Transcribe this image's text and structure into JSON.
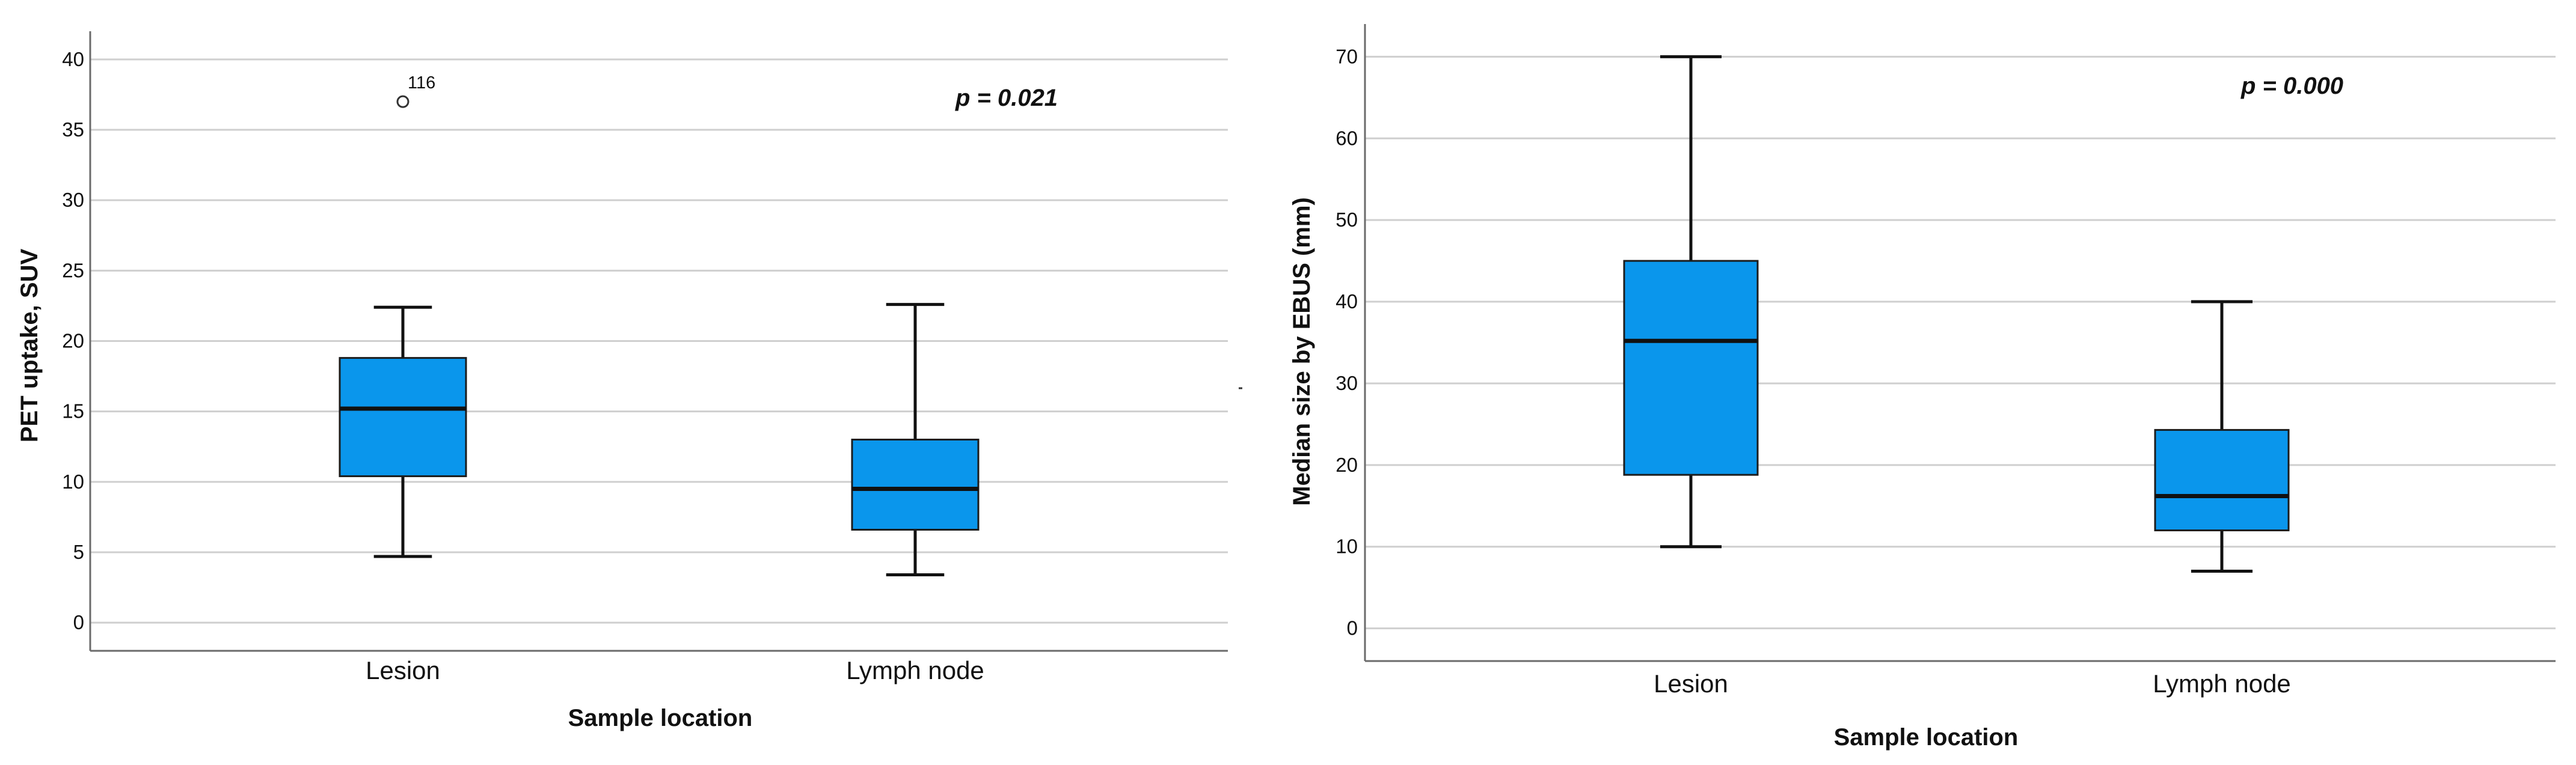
{
  "chart_data": [
    {
      "type": "boxplot",
      "xlabel": "Sample location",
      "ylabel": "PET uptake, SUV",
      "categories": [
        "Lesion",
        "Lymph node"
      ],
      "yticks": [
        0,
        5,
        10,
        15,
        20,
        25,
        30,
        35,
        40
      ],
      "ylim": [
        -2,
        42
      ],
      "grid": true,
      "annotation": "p = 0.021",
      "boxes": [
        {
          "min": 4.7,
          "q1": 10.4,
          "median": 15.2,
          "q3": 18.8,
          "max": 22.4
        },
        {
          "min": 3.4,
          "q1": 6.6,
          "median": 9.5,
          "q3": 13.0,
          "max": 22.6
        }
      ],
      "outliers": [
        {
          "category": "Lesion",
          "value": 37.0,
          "label": "116"
        }
      ],
      "colors": {
        "box": "#0a96ec",
        "line": "#111111",
        "grid": "#cfcfcf"
      }
    },
    {
      "type": "boxplot",
      "xlabel": "Sample location",
      "ylabel": "Median size by EBUS (mm)",
      "categories": [
        "Lesion",
        "Lymph node"
      ],
      "yticks": [
        0,
        10,
        20,
        30,
        40,
        50,
        60,
        70
      ],
      "ylim": [
        -4,
        74
      ],
      "grid": true,
      "annotation": "p = 0.000",
      "boxes": [
        {
          "min": 10,
          "q1": 18.8,
          "median": 35.2,
          "q3": 45.0,
          "max": 70
        },
        {
          "min": 7,
          "q1": 12.0,
          "median": 16.2,
          "q3": 24.3,
          "max": 40
        }
      ],
      "outliers": [],
      "colors": {
        "box": "#0a96ec",
        "line": "#111111",
        "grid": "#cfcfcf"
      }
    }
  ]
}
